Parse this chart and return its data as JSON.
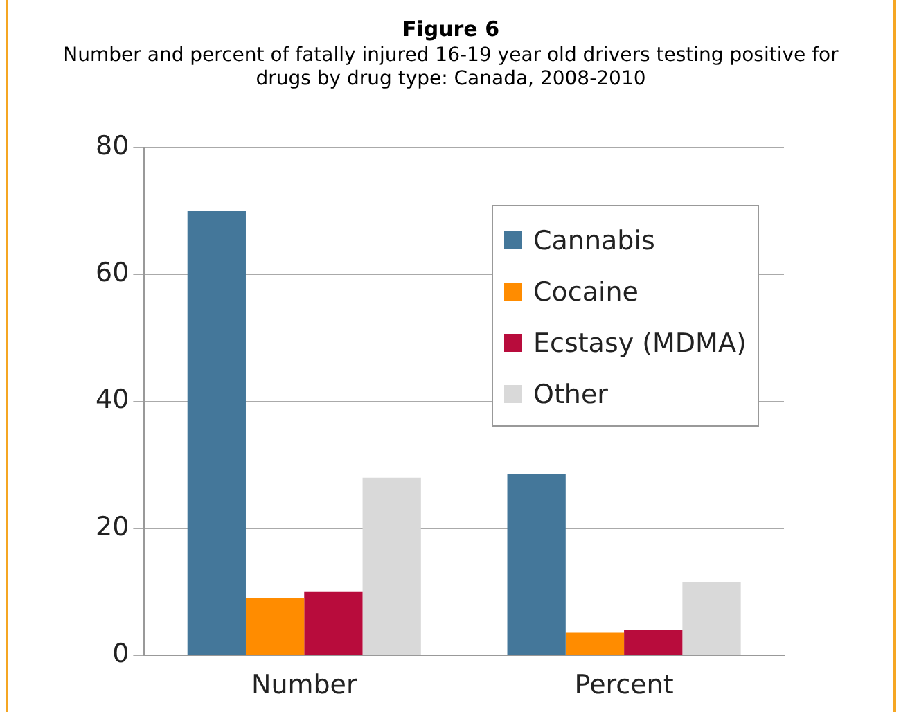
{
  "chart_data": {
    "type": "bar",
    "title": "Figure 6",
    "subtitle": "Number and percent of fatally injured 16-19 year old drivers testing positive for drugs by drug type: Canada, 2008-2010",
    "categories": [
      "Number",
      "Percent"
    ],
    "series": [
      {
        "name": "Cannabis",
        "color": "#44779a",
        "values": [
          70,
          28.5
        ]
      },
      {
        "name": "Cocaine",
        "color": "#ff8c00",
        "values": [
          9,
          3.6
        ]
      },
      {
        "name": "Ecstasy (MDMA)",
        "color": "#b80c3c",
        "values": [
          10,
          4
        ]
      },
      {
        "name": "Other",
        "color": "#d9d9d9",
        "values": [
          28,
          11.5
        ]
      }
    ],
    "ylim": [
      0,
      80
    ],
    "yticks": [
      0,
      20,
      40,
      60,
      80
    ],
    "grid": "y",
    "legend": "top right"
  }
}
